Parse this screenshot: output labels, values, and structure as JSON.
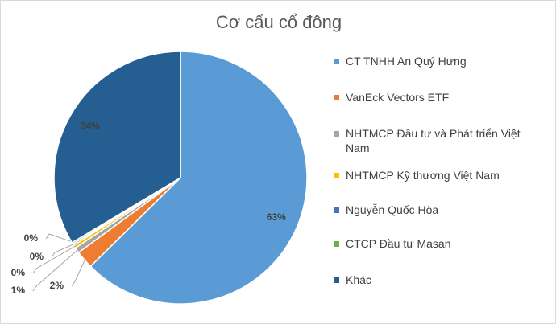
{
  "chart_data": {
    "type": "pie",
    "title": "Cơ cấu cổ đông",
    "categories": [
      "CT TNHH An Quý Hưng",
      "VanEck Vectors ETF",
      "NHTMCP Đầu tư và Phát triển Việt Nam",
      "NHTMCP Kỹ thương Việt Nam",
      "Nguyễn Quốc Hòa",
      "CTCP Đầu tư Masan",
      "Khác"
    ],
    "values": [
      62.6,
      2.3,
      0.7,
      0.4,
      0.2,
      0.2,
      33.6
    ],
    "value_labels": [
      "63%",
      "2%",
      "1%",
      "0%",
      "0%",
      "0%",
      "34%"
    ],
    "colors": [
      "#5b9bd5",
      "#ed7d31",
      "#a5a5a5",
      "#ffc000",
      "#4472c4",
      "#70ad47",
      "#255e91"
    ],
    "legend": "right"
  }
}
